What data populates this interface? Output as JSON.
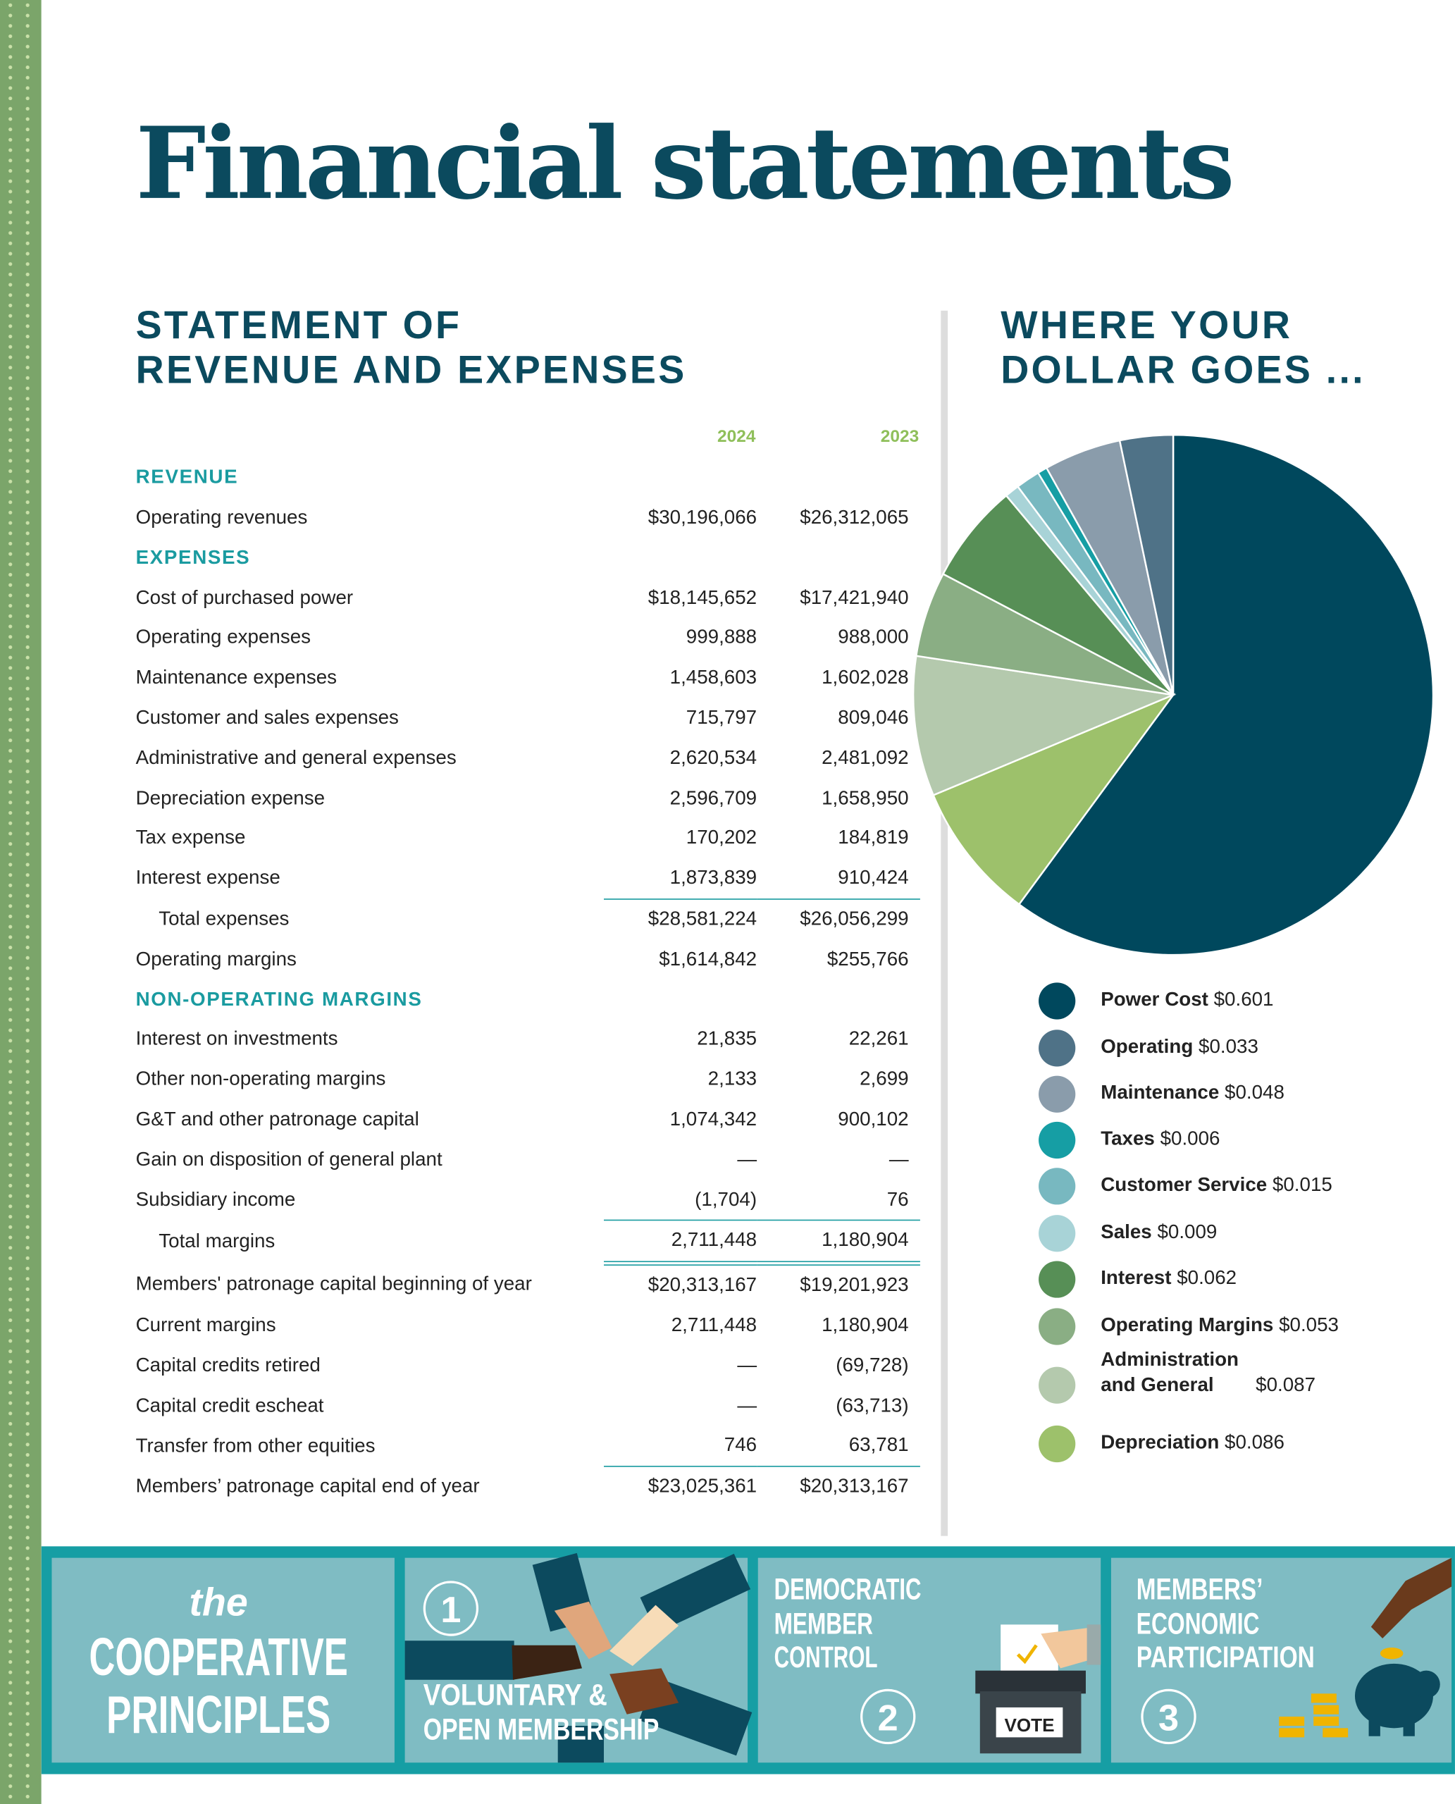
{
  "title": "Financial statements",
  "statement": {
    "heading": [
      "STATEMENT OF",
      "REVENUE AND EXPENSES"
    ],
    "columns": [
      "2024",
      "2023"
    ],
    "sections": [
      {
        "title": "REVENUE",
        "rows": [
          [
            "Operating revenues",
            "$30,196,066",
            "$26,312,065"
          ]
        ]
      },
      {
        "title": "EXPENSES",
        "rows": [
          [
            "Cost of purchased power",
            "$18,145,652",
            "$17,421,940"
          ],
          [
            "Operating expenses",
            "999,888",
            "988,000"
          ],
          [
            "Maintenance expenses",
            "1,458,603",
            "1,602,028"
          ],
          [
            "Customer and sales expenses",
            "715,797",
            "809,046"
          ],
          [
            "Administrative and general expenses",
            "2,620,534",
            "2,481,092"
          ],
          [
            "Depreciation expense",
            "2,596,709",
            "1,658,950"
          ],
          [
            "Tax expense",
            "170,202",
            "184,819"
          ],
          [
            "Interest expense",
            "1,873,839",
            "910,424"
          ],
          [
            "Total expenses",
            "$28,581,224",
            "$26,056,299"
          ],
          [
            "Operating margins",
            "$1,614,842",
            "$255,766"
          ]
        ]
      },
      {
        "title": "NON-OPERATING MARGINS",
        "rows": [
          [
            "Interest on investments",
            "21,835",
            "22,261"
          ],
          [
            "Other non-operating margins",
            "2,133",
            "2,699"
          ],
          [
            "G&T and other patronage capital",
            "1,074,342",
            "900,102"
          ],
          [
            "Gain on disposition of general plant",
            "—",
            "—"
          ],
          [
            "Subsidiary income",
            "(1,704)",
            "76"
          ],
          [
            "Total margins",
            "2,711,448",
            "1,180,904"
          ],
          [
            "Members' patronage capital beginning of year",
            "$20,313,167",
            "$19,201,923"
          ],
          [
            "Current margins",
            "2,711,448",
            "1,180,904"
          ],
          [
            "Capital credits retired",
            "—",
            "(69,728)"
          ],
          [
            "Capital credit escheat",
            "—",
            "(63,713)"
          ],
          [
            "Transfer from other equities",
            "746",
            "63,781"
          ],
          [
            "Members’ patronage capital end of year",
            "$23,025,361",
            "$20,313,167"
          ]
        ]
      }
    ]
  },
  "chart_data": {
    "type": "pie",
    "title": [
      "WHERE YOUR",
      "DOLLAR GOES ..."
    ],
    "categories": [
      "Power Cost",
      "Operating",
      "Maintenance",
      "Taxes",
      "Customer Service",
      "Sales",
      "Interest",
      "Operating Margins",
      "Administration and General",
      "Depreciation"
    ],
    "values": [
      0.601,
      0.033,
      0.048,
      0.006,
      0.015,
      0.009,
      0.062,
      0.053,
      0.087,
      0.086
    ],
    "value_labels": [
      "$0.601",
      "$0.033",
      "$0.048",
      "$0.006",
      "$0.015",
      "$0.009",
      "$0.062",
      "$0.053",
      "$0.087",
      "$0.086"
    ],
    "colors": [
      "#00485d",
      "#4f7287",
      "#8a9cab",
      "#169ea4",
      "#78b8c0",
      "#a8d3d7",
      "#578f56",
      "#8aae84",
      "#b4c9ad",
      "#9dc16b"
    ]
  },
  "footer": {
    "intro": {
      "small": "the",
      "big": [
        "COOPERATIVE",
        "PRINCIPLES"
      ]
    },
    "principles": [
      {
        "number": "1",
        "name": [
          "VOLUNTARY &",
          "OPEN MEMBERSHIP"
        ]
      },
      {
        "number": "2",
        "name": [
          "DEMOCRATIC",
          "MEMBER",
          "CONTROL"
        ],
        "sign": "VOTE"
      },
      {
        "number": "3",
        "name": [
          "MEMBERS’",
          "ECONOMIC",
          "PARTICIPATION"
        ]
      }
    ]
  }
}
